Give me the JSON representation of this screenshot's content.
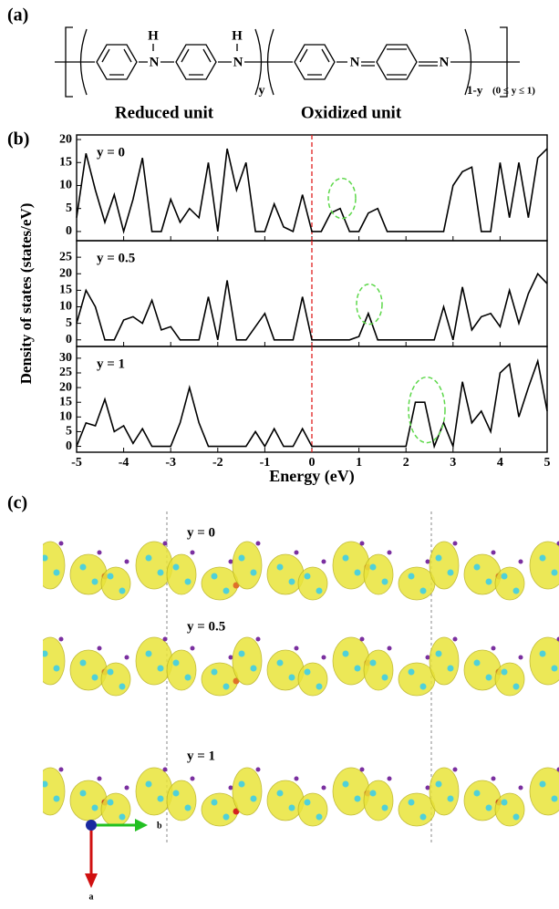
{
  "structure": {
    "label": "(a)",
    "atoms": [
      "H",
      "N",
      "H",
      "N",
      "N",
      "N"
    ],
    "subscripts": [
      "y",
      "1-y"
    ],
    "range": "(0 ≤ y ≤ 1)",
    "units": [
      "Reduced unit",
      "Oxidized unit"
    ]
  },
  "panel_b_label": "(b)",
  "chart_data": [
    {
      "type": "line",
      "annotation": "y = 0",
      "color": "#000000",
      "xlim": [
        -5,
        5
      ],
      "ylim": [
        -2,
        21
      ],
      "yticks": [
        0,
        5,
        10,
        15,
        20
      ],
      "xticks": [
        -5,
        -4,
        -3,
        -2,
        -1,
        0,
        1,
        2,
        3,
        4,
        5
      ],
      "reference_line_x": 0,
      "x": [
        -5,
        -4.8,
        -4.6,
        -4.4,
        -4.2,
        -4,
        -3.8,
        -3.6,
        -3.4,
        -3.2,
        -3,
        -2.8,
        -2.6,
        -2.4,
        -2.2,
        -2,
        -1.8,
        -1.6,
        -1.4,
        -1.2,
        -1,
        -0.8,
        -0.6,
        -0.4,
        -0.2,
        0,
        0.2,
        0.4,
        0.6,
        0.8,
        1,
        1.2,
        1.4,
        1.6,
        1.8,
        2,
        2.2,
        2.4,
        2.6,
        2.8,
        3,
        3.2,
        3.4,
        3.6,
        3.8,
        4,
        4.2,
        4.4,
        4.6,
        4.8,
        5
      ],
      "values": [
        3,
        17,
        9,
        2,
        8,
        0,
        7,
        16,
        0,
        0,
        7,
        2,
        5,
        3,
        15,
        0,
        18,
        9,
        15,
        0,
        0,
        6,
        1,
        0,
        8,
        0,
        0,
        4,
        5,
        0,
        0,
        4,
        5,
        0,
        0,
        0,
        0,
        0,
        0,
        0,
        10,
        13,
        14,
        0,
        0,
        15,
        3,
        15,
        3,
        16,
        18
      ]
    },
    {
      "type": "line",
      "annotation": "y = 0.5",
      "ylabel": "Density of states (states/eV)",
      "color": "#000000",
      "xlim": [
        -5,
        5
      ],
      "ylim": [
        -2,
        30
      ],
      "yticks": [
        0,
        5,
        10,
        15,
        20,
        25
      ],
      "xticks": [
        -5,
        -4,
        -3,
        -2,
        -1,
        0,
        1,
        2,
        3,
        4,
        5
      ],
      "reference_line_x": 0,
      "x": [
        -5,
        -4.8,
        -4.6,
        -4.4,
        -4.2,
        -4,
        -3.8,
        -3.6,
        -3.4,
        -3.2,
        -3,
        -2.8,
        -2.6,
        -2.4,
        -2.2,
        -2,
        -1.8,
        -1.6,
        -1.4,
        -1.2,
        -1,
        -0.8,
        -0.6,
        -0.4,
        -0.2,
        0,
        0.2,
        0.4,
        0.6,
        0.8,
        1,
        1.2,
        1.4,
        1.6,
        1.8,
        2,
        2.2,
        2.4,
        2.6,
        2.8,
        3,
        3.2,
        3.4,
        3.6,
        3.8,
        4,
        4.2,
        4.4,
        4.6,
        4.8,
        5
      ],
      "values": [
        5,
        15,
        10,
        0,
        0,
        6,
        7,
        5,
        12,
        3,
        4,
        0,
        0,
        0,
        13,
        0,
        18,
        0,
        0,
        4,
        8,
        0,
        0,
        0,
        13,
        0,
        0,
        0,
        0,
        0,
        1,
        8,
        0,
        0,
        0,
        0,
        0,
        0,
        0,
        10,
        0,
        16,
        3,
        7,
        8,
        4,
        15,
        5,
        14,
        20,
        17
      ]
    },
    {
      "type": "line",
      "annotation": "y = 1",
      "xlabel": "Energy (eV)",
      "color": "#000000",
      "xlim": [
        -5,
        5
      ],
      "ylim": [
        -2,
        34
      ],
      "yticks": [
        0,
        5,
        10,
        15,
        20,
        25,
        30
      ],
      "xticks": [
        -5,
        -4,
        -3,
        -2,
        -1,
        0,
        1,
        2,
        3,
        4,
        5
      ],
      "reference_line_x": 0,
      "x": [
        -5,
        -4.8,
        -4.6,
        -4.4,
        -4.2,
        -4,
        -3.8,
        -3.6,
        -3.4,
        -3.2,
        -3,
        -2.8,
        -2.6,
        -2.4,
        -2.2,
        -2,
        -1.8,
        -1.6,
        -1.4,
        -1.2,
        -1,
        -0.8,
        -0.6,
        -0.4,
        -0.2,
        0,
        0.2,
        0.4,
        0.6,
        0.8,
        1,
        1.2,
        1.4,
        1.6,
        1.8,
        2,
        2.2,
        2.4,
        2.6,
        2.8,
        3,
        3.2,
        3.4,
        3.6,
        3.8,
        4,
        4.2,
        4.4,
        4.6,
        4.8,
        5
      ],
      "values": [
        0,
        8,
        7,
        16,
        5,
        7,
        1,
        6,
        0,
        0,
        0,
        8,
        20,
        8,
        0,
        0,
        0,
        0,
        0,
        5,
        0,
        6,
        0,
        0,
        6,
        0,
        0,
        0,
        0,
        0,
        0,
        0,
        0,
        0,
        0,
        0,
        15,
        15,
        0,
        8,
        0,
        22,
        8,
        12,
        5,
        25,
        28,
        10,
        20,
        29,
        12
      ]
    }
  ],
  "panel_c": {
    "label": "(c)",
    "rows": [
      "y = 0",
      "y = 0.5",
      "y = 1"
    ],
    "axes": [
      "b",
      "a"
    ]
  }
}
